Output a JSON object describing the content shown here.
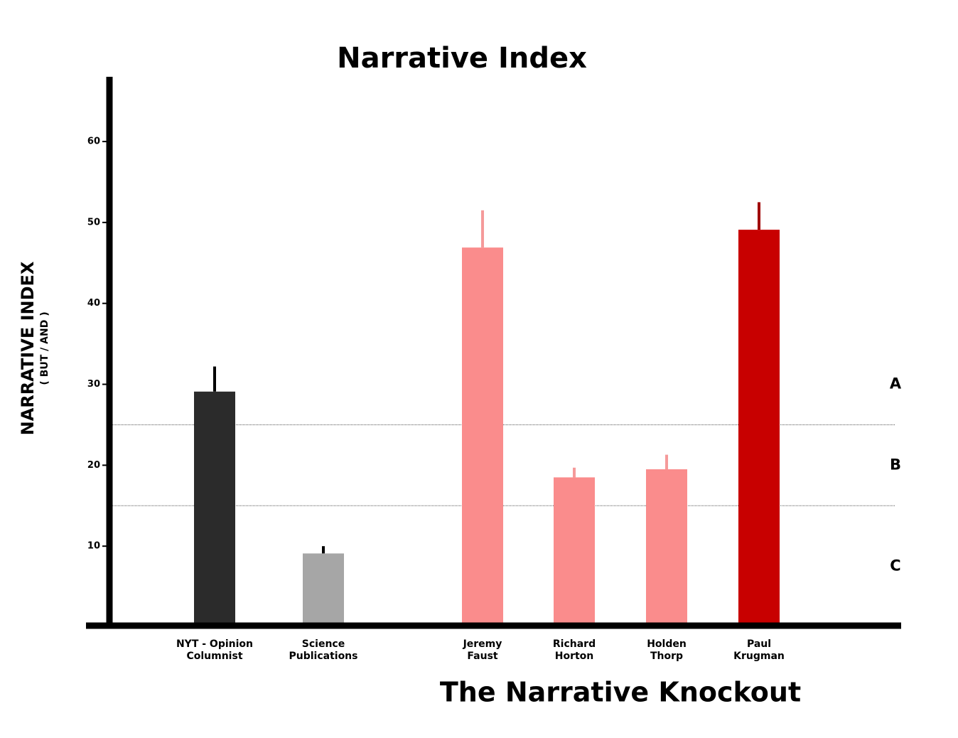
{
  "chart_data": {
    "type": "bar",
    "title": "Narrative Index",
    "y_label": "NARRATIVE INDEX",
    "y_sublabel": "( BUT / AND )",
    "x_label": "The Narrative Knockout",
    "categories": [
      [
        "NYT - Opinion",
        "Columnist"
      ],
      [
        "Science",
        "Publications"
      ],
      [
        "Jeremy",
        "Faust"
      ],
      [
        "Richard",
        "Horton"
      ],
      [
        "Holden",
        "Thorp"
      ],
      [
        "Paul",
        "Krugman"
      ]
    ],
    "values": [
      29.1,
      9.1,
      46.9,
      18.5,
      19.5,
      49.1
    ],
    "errors": [
      3.1,
      0.9,
      4.6,
      1.2,
      1.8,
      3.4
    ],
    "colors": [
      "#2b2b2b",
      "#a6a6a6",
      "#fa8c8c",
      "#fa8c8c",
      "#fa8c8c",
      "#c80000"
    ],
    "error_colors": [
      "#000000",
      "#000000",
      "#f59a9a",
      "#f59a9a",
      "#f59a9a",
      "#a00000"
    ],
    "ylim": [
      0,
      68
    ],
    "yticks": [
      10,
      20,
      30,
      40,
      50,
      60
    ],
    "thresholds": [
      15,
      25
    ],
    "zones": [
      "C",
      "B",
      "A"
    ]
  }
}
